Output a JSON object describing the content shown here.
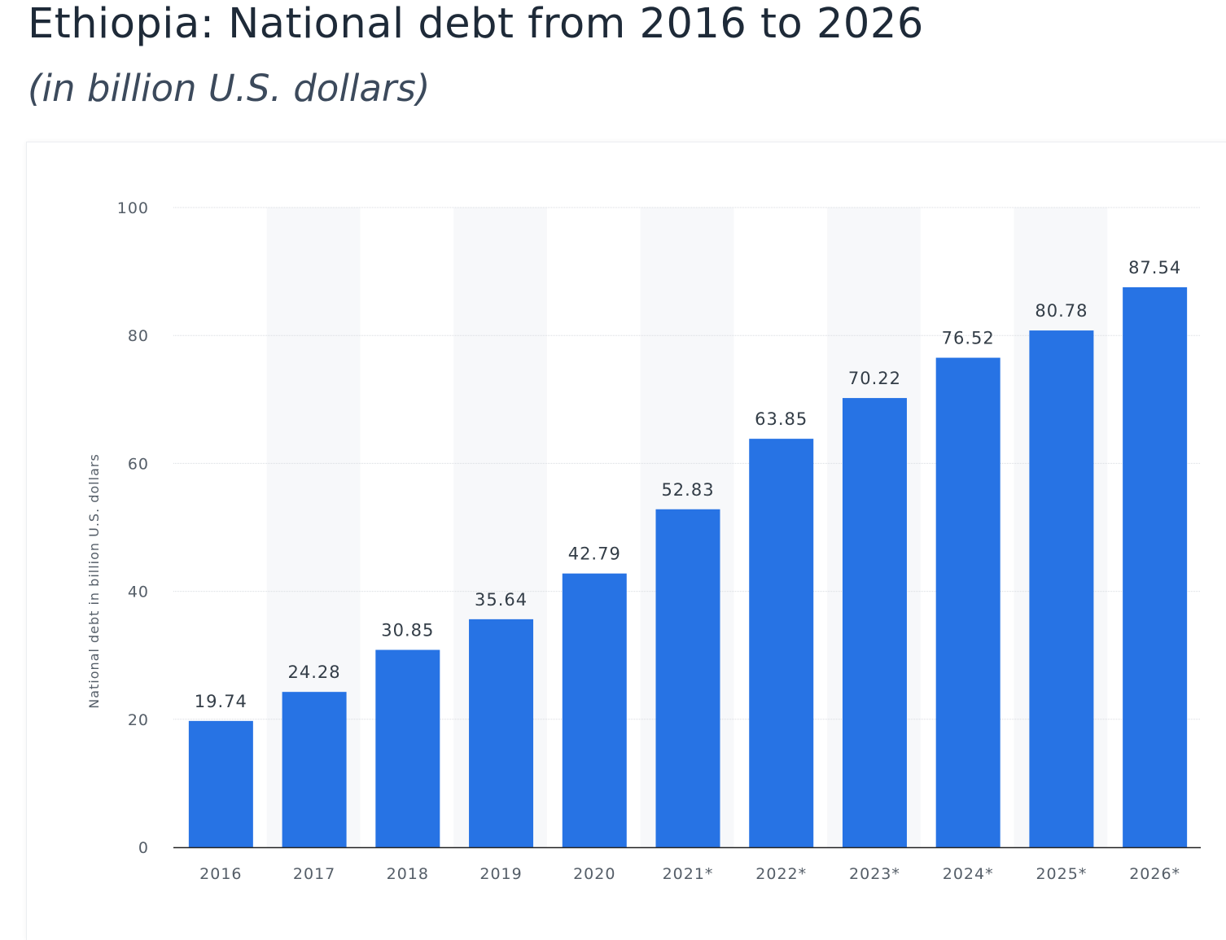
{
  "header": {
    "title": "Ethiopia: National debt from 2016 to 2026",
    "subtitle": "(in billion U.S. dollars)"
  },
  "colors": {
    "bar": "#2773e4",
    "grid": "#d8dbe0",
    "band": "#f7f8fa",
    "axis": "#222222"
  },
  "chart_data": {
    "type": "bar",
    "title": "Ethiopia: National debt from 2016 to 2026",
    "subtitle": "(in billion U.S. dollars)",
    "xlabel": "",
    "ylabel": "National debt in billion U.S. dollars",
    "ylim": [
      0,
      100
    ],
    "yticks": [
      0,
      20,
      40,
      60,
      80,
      100
    ],
    "grid": true,
    "categories": [
      "2016",
      "2017",
      "2018",
      "2019",
      "2020",
      "2021*",
      "2022*",
      "2023*",
      "2024*",
      "2025*",
      "2026*"
    ],
    "values": [
      19.74,
      24.28,
      30.85,
      35.64,
      42.79,
      52.83,
      63.85,
      70.22,
      76.52,
      80.78,
      87.54
    ],
    "value_labels": [
      "19.74",
      "24.28",
      "30.85",
      "35.64",
      "42.79",
      "52.83",
      "63.85",
      "70.22",
      "76.52",
      "80.78",
      "87.54"
    ]
  }
}
